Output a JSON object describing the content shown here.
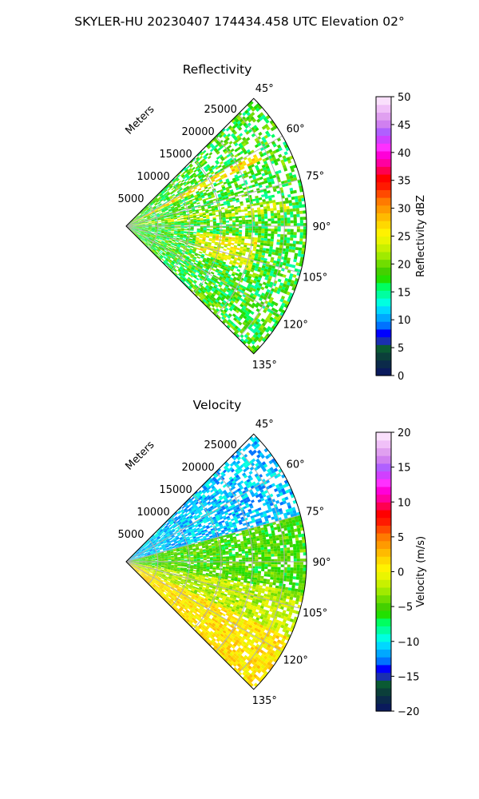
{
  "figure": {
    "suptitle": "SKYLER-HU  20230407  174434.458 UTC Elevation 02°"
  },
  "chart_data": [
    {
      "type": "heatmap",
      "projection": "polar-sector",
      "title": "Reflectivity",
      "range_label": "Meters",
      "range_ticks": [
        "5000",
        "10000",
        "15000",
        "20000",
        "25000"
      ],
      "range_tick_values": [
        5000,
        10000,
        15000,
        20000,
        25000
      ],
      "range_max": 28500,
      "azimuth_ticks": [
        "45°",
        "60°",
        "75°",
        "90°",
        "105°",
        "120°",
        "135°"
      ],
      "azimuth_tick_values": [
        45,
        60,
        75,
        90,
        105,
        120,
        135
      ],
      "azimuth_range": [
        45,
        135
      ],
      "grid": true,
      "colorbar": {
        "label": "Reflectivity dBZ",
        "ticks": [
          "0",
          "5",
          "10",
          "15",
          "20",
          "25",
          "30",
          "35",
          "40",
          "45",
          "50"
        ],
        "range": [
          0,
          50
        ],
        "colors": [
          "#0a1a5c",
          "#0b2a4a",
          "#0b3f3a",
          "#0a5a33",
          "#1a2fb0",
          "#0000ff",
          "#0072ff",
          "#00a8ff",
          "#00d8ff",
          "#00ffe0",
          "#00ffa0",
          "#00ff60",
          "#22e000",
          "#44d000",
          "#70dd00",
          "#a0ea00",
          "#c8f000",
          "#eaf500",
          "#fff200",
          "#ffd800",
          "#ffba00",
          "#ff9a00",
          "#ff7a00",
          "#ff4a00",
          "#ff1a00",
          "#ff0000",
          "#ff0050",
          "#ff00a0",
          "#ff00d8",
          "#ff30ff",
          "#d040ff",
          "#b060ff",
          "#d080f0",
          "#e0a0f0",
          "#f0c0f8",
          "#fae0fc"
        ]
      },
      "data_summary": "Sparse echoes across the sector, mostly 15–25 dBZ, with a core near 20–25 dBZ around azimuth 100° at 12–20 km and narrow radial interference spikes near 62° and 80°",
      "fields": [
        {
          "az": [
            45,
            135
          ],
          "r": [
            0,
            28500
          ],
          "value": 18
        },
        {
          "az": [
            95,
            110
          ],
          "r": [
            11000,
            21000
          ],
          "value": 24
        },
        {
          "az": [
            80,
            85
          ],
          "r": [
            0,
            26000
          ],
          "value": 22
        },
        {
          "az": [
            60,
            64
          ],
          "r": [
            0,
            24000
          ],
          "value": 26
        }
      ]
    },
    {
      "type": "heatmap",
      "projection": "polar-sector",
      "title": "Velocity",
      "range_label": "Meters",
      "range_ticks": [
        "5000",
        "10000",
        "15000",
        "20000",
        "25000"
      ],
      "range_tick_values": [
        5000,
        10000,
        15000,
        20000,
        25000
      ],
      "range_max": 28500,
      "azimuth_ticks": [
        "45°",
        "60°",
        "75°",
        "90°",
        "105°",
        "120°",
        "135°"
      ],
      "azimuth_tick_values": [
        45,
        60,
        75,
        90,
        105,
        120,
        135
      ],
      "azimuth_range": [
        45,
        135
      ],
      "grid": true,
      "colorbar": {
        "label": "Velocity (m/s)",
        "ticks": [
          "−20",
          "−15",
          "−10",
          "−5",
          "0",
          "5",
          "10",
          "15",
          "20"
        ],
        "range": [
          -20,
          20
        ],
        "colors": [
          "#0a1a5c",
          "#0b2a4a",
          "#0b3f3a",
          "#0a5a33",
          "#1a2fb0",
          "#0000ff",
          "#0072ff",
          "#00a8ff",
          "#00d8ff",
          "#00ffe0",
          "#00ffa0",
          "#00ff60",
          "#22e000",
          "#44d000",
          "#70dd00",
          "#a0ea00",
          "#c8f000",
          "#eaf500",
          "#fff200",
          "#ffd800",
          "#ffba00",
          "#ff9a00",
          "#ff7a00",
          "#ff4a00",
          "#ff1a00",
          "#ff0000",
          "#ff0050",
          "#ff00a0",
          "#ff00d8",
          "#ff30ff",
          "#d040ff",
          "#b060ff",
          "#d080f0",
          "#e0a0f0",
          "#f0c0f8",
          "#fae0fc"
        ]
      },
      "data_summary": "Velocity field: about −10 to −12 m/s toward 45–75°, −3 to −7 m/s around 75–100°, near 0 to +3 m/s toward 110–135°, with a narrow red radial spike near 80°",
      "fields": [
        {
          "az": [
            45,
            75
          ],
          "r": [
            0,
            28500
          ],
          "value": -11
        },
        {
          "az": [
            75,
            100
          ],
          "r": [
            0,
            28500
          ],
          "value": -5
        },
        {
          "az": [
            100,
            115
          ],
          "r": [
            0,
            28500
          ],
          "value": -2
        },
        {
          "az": [
            115,
            135
          ],
          "r": [
            0,
            28500
          ],
          "value": 1
        }
      ]
    }
  ]
}
